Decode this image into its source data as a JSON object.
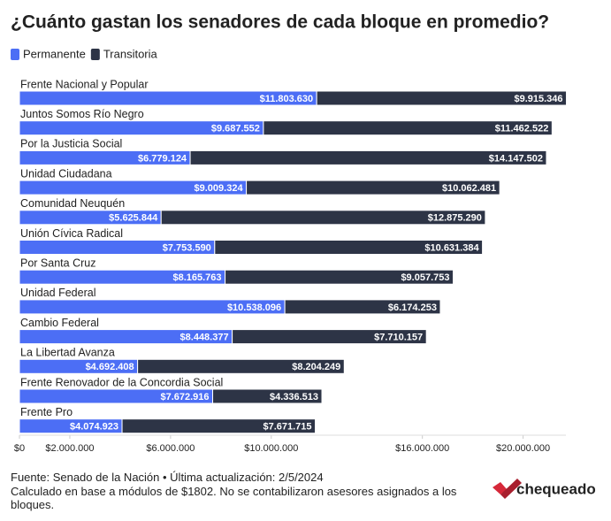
{
  "chart_data": {
    "type": "stacked-bar-horizontal",
    "title": "¿Cuánto gastan los senadores de cada bloque en promedio?",
    "categories": [
      "Frente Nacional y Popular",
      "Juntos Somos Río Negro",
      "Por la Justicia Social",
      "Unidad Ciudadana",
      "Comunidad Neuquén",
      "Unión Cívica Radical",
      "Por Santa Cruz",
      "Unidad Federal",
      "Cambio Federal",
      "La Libertad Avanza",
      "Frente Renovador de la Concordia Social",
      "Frente Pro"
    ],
    "series": [
      {
        "name": "Permanente",
        "color": "#4c6ef5",
        "values": [
          11803630,
          9687552,
          6779124,
          9009324,
          5625844,
          7753590,
          8165763,
          10538096,
          8448377,
          4692408,
          7672916,
          4074923
        ],
        "value_labels": [
          "$11.803.630",
          "$9.687.552",
          "$6.779.124",
          "$9.009.324",
          "$5.625.844",
          "$7.753.590",
          "$8.165.763",
          "$10.538.096",
          "$8.448.377",
          "$4.692.408",
          "$7.672.916",
          "$4.074.923"
        ]
      },
      {
        "name": "Transitoria",
        "color": "#2d3446",
        "values": [
          9915346,
          11462522,
          14147502,
          10062481,
          12875290,
          10631384,
          9057753,
          6174253,
          7710157,
          8204249,
          4336513,
          7671715
        ],
        "value_labels": [
          "$9.915.346",
          "$11.462.522",
          "$14.147.502",
          "$10.062.481",
          "$12.875.290",
          "$10.631.384",
          "$9.057.753",
          "$6.174.253",
          "$7.710.157",
          "$8.204.249",
          "$4.336.513",
          "$7.671.715"
        ]
      }
    ],
    "xlim": [
      0,
      21700000
    ],
    "xticks": [
      {
        "value": 0,
        "label": "$0"
      },
      {
        "value": 2000000,
        "label": "$2.000.000"
      },
      {
        "value": 6000000,
        "label": "$6.000.000"
      },
      {
        "value": 10000000,
        "label": "$10.000.000"
      },
      {
        "value": 16000000,
        "label": "$16.000.000"
      },
      {
        "value": 20000000,
        "label": "$20.000.000"
      }
    ],
    "source": "Fuente: Senado de la Nación • Última actualización: 2/5/2024",
    "note": "Calculado en base a módulos de $1802. No se contabilizaron asesores asignados a los bloques.",
    "logo": "chequeado"
  }
}
